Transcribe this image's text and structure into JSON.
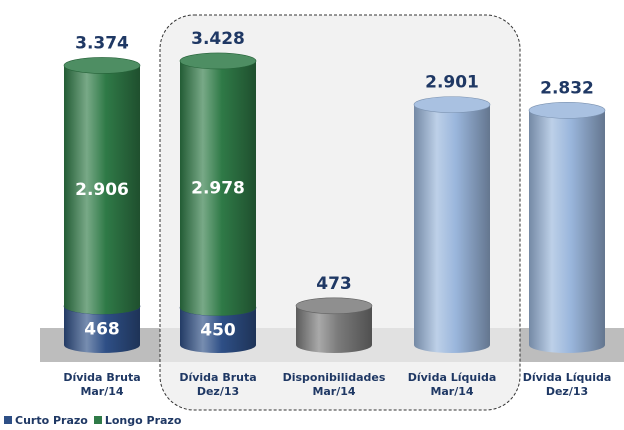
{
  "chart_data": {
    "type": "cylinder-waterfall",
    "categories": [
      "Dívida Bruta\nMar/14",
      "Dívida Bruta\nDez/13",
      "Disponibilidades\nMar/14",
      "Dívida Líquida\nMar/14",
      "Dívida Líquida\nDez/13"
    ],
    "series": [
      {
        "name": "Curto Prazo",
        "color": "#2e4f86",
        "values": [
          468,
          450,
          null,
          null,
          null
        ],
        "value_labels": [
          "468",
          "450",
          null,
          null,
          null
        ]
      },
      {
        "name": "Longo Prazo",
        "color": "#2f7a47",
        "values": [
          2906,
          2978,
          null,
          null,
          null
        ],
        "value_labels": [
          "2.906",
          "2.978",
          null,
          null,
          null
        ]
      },
      {
        "color": "#7b7b7b",
        "values": [
          null,
          null,
          473,
          null,
          null
        ],
        "value_labels": [
          null,
          null,
          "473",
          null,
          null
        ]
      },
      {
        "color": "#9ab6dc",
        "values": [
          null,
          null,
          null,
          2901,
          2832
        ],
        "value_labels": [
          null,
          null,
          null,
          "2.901",
          "2.832"
        ]
      }
    ],
    "totals": [
      3374,
      3428,
      null,
      null,
      null
    ],
    "total_labels": [
      "3.374",
      "3.428",
      null,
      null,
      null
    ],
    "ylim": [
      0,
      3500
    ]
  }
}
